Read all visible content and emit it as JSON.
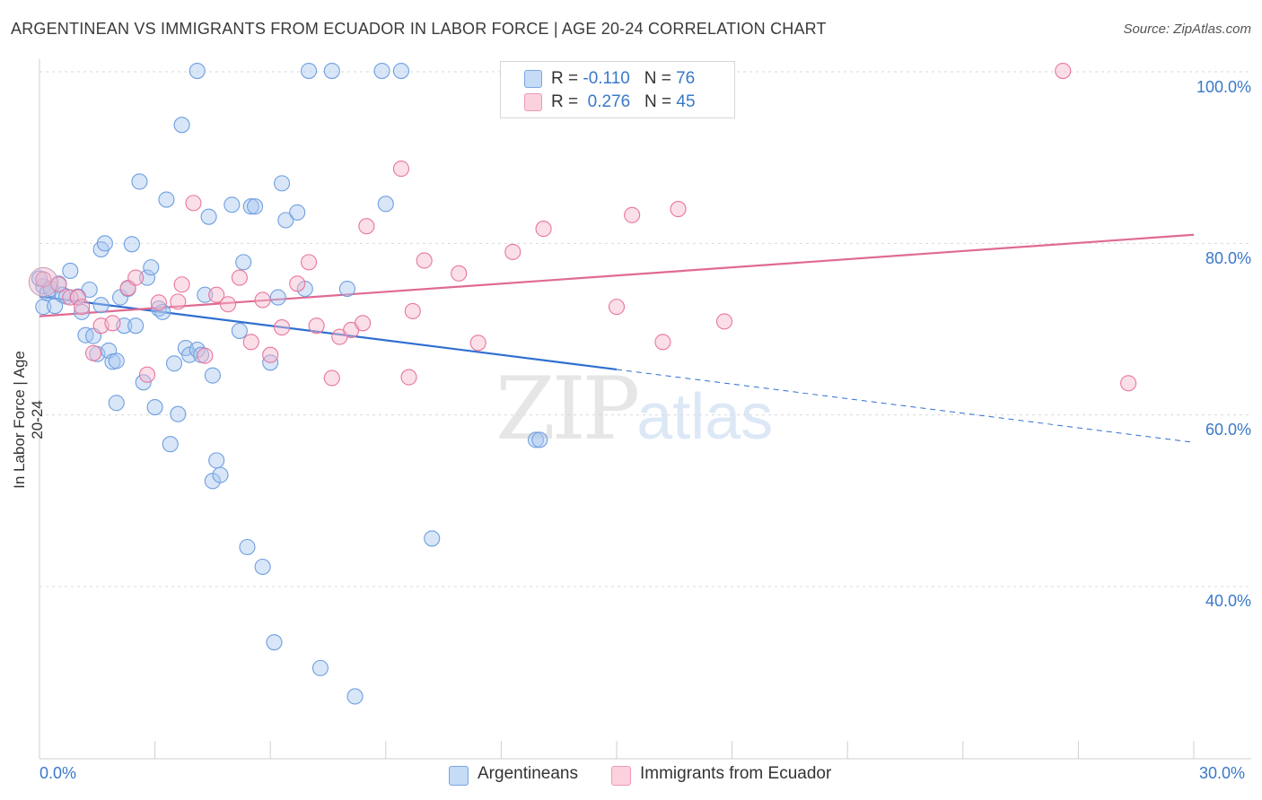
{
  "header": {
    "title": "ARGENTINEAN VS IMMIGRANTS FROM ECUADOR IN LABOR FORCE | AGE 20-24 CORRELATION CHART",
    "source": "Source: ZipAtlas.com"
  },
  "watermark": {
    "zip": "ZIP",
    "atlas": "atlas"
  },
  "legend_top": {
    "rows": [
      {
        "r_label": "R = ",
        "r_value": "-0.110",
        "n_label": "N = ",
        "n_value": "76",
        "color": "#a9c8f0"
      },
      {
        "r_label": "R = ",
        "r_value": "0.276",
        "n_label": "N = ",
        "n_value": "45",
        "color": "#f6b8cb"
      }
    ]
  },
  "legend_bottom": [
    {
      "label": "Argentineans",
      "color": "#a9c8f0"
    },
    {
      "label": "Immigrants from Ecuador",
      "color": "#f6b8cb"
    }
  ],
  "axis": {
    "ylabel": "In Labor Force | Age 20-24",
    "x_min_label": "0.0%",
    "x_max_label": "30.0%",
    "y_ticks": [
      "100.0%",
      "80.0%",
      "60.0%",
      "40.0%"
    ]
  },
  "chart_data": {
    "type": "scatter",
    "title": "ARGENTINEAN VS IMMIGRANTS FROM ECUADOR IN LABOR FORCE | AGE 20-24 CORRELATION CHART",
    "xlabel": "",
    "ylabel": "In Labor Force | Age 20-24",
    "xlim": [
      0,
      30
    ],
    "ylim": [
      20,
      102
    ],
    "y_ticks": [
      40,
      60,
      80,
      100
    ],
    "grid": true,
    "legend": "bottom",
    "series": [
      {
        "name": "Argentineans",
        "color": "#6f9fe0",
        "fill": "#a9c8f0",
        "R": -0.11,
        "N": 76,
        "trend": {
          "x0": 0,
          "y0": 73.8,
          "x1": 15,
          "y1": 65.3,
          "dashed_to_x": 30,
          "dashed_to_y": 56.8
        },
        "points": [
          [
            0.1,
            75.0
          ],
          [
            0.1,
            72.6
          ],
          [
            0.2,
            74.2
          ],
          [
            0.3,
            74.7
          ],
          [
            0.4,
            72.7
          ],
          [
            0.5,
            75.3
          ],
          [
            0.6,
            74.0
          ],
          [
            0.7,
            73.8
          ],
          [
            0.8,
            76.8
          ],
          [
            1.0,
            73.8
          ],
          [
            1.1,
            72.0
          ],
          [
            1.2,
            69.3
          ],
          [
            1.3,
            74.6
          ],
          [
            1.4,
            69.2
          ],
          [
            1.5,
            67.1
          ],
          [
            1.6,
            79.3
          ],
          [
            1.7,
            80.0
          ],
          [
            1.8,
            67.5
          ],
          [
            1.9,
            66.2
          ],
          [
            2.0,
            61.4
          ],
          [
            2.0,
            66.3
          ],
          [
            2.1,
            73.7
          ],
          [
            2.2,
            70.4
          ],
          [
            2.3,
            74.7
          ],
          [
            2.4,
            79.9
          ],
          [
            2.5,
            70.4
          ],
          [
            2.6,
            87.2
          ],
          [
            2.7,
            63.8
          ],
          [
            2.8,
            76.0
          ],
          [
            2.9,
            77.2
          ],
          [
            3.0,
            60.9
          ],
          [
            3.1,
            72.4
          ],
          [
            3.2,
            72.0
          ],
          [
            3.3,
            85.1
          ],
          [
            3.4,
            56.6
          ],
          [
            3.5,
            66.0
          ],
          [
            3.6,
            60.1
          ],
          [
            3.7,
            93.8
          ],
          [
            3.8,
            67.8
          ],
          [
            3.9,
            67.0
          ],
          [
            4.1,
            100.1
          ],
          [
            4.1,
            67.6
          ],
          [
            4.2,
            67.0
          ],
          [
            4.3,
            74.0
          ],
          [
            4.4,
            83.1
          ],
          [
            4.5,
            64.6
          ],
          [
            4.5,
            52.3
          ],
          [
            4.6,
            54.7
          ],
          [
            4.7,
            53.0
          ],
          [
            5.0,
            84.5
          ],
          [
            5.2,
            69.8
          ],
          [
            5.3,
            77.8
          ],
          [
            5.4,
            44.6
          ],
          [
            5.5,
            84.3
          ],
          [
            5.6,
            84.3
          ],
          [
            5.8,
            42.3
          ],
          [
            6.0,
            66.1
          ],
          [
            6.1,
            33.5
          ],
          [
            6.2,
            73.7
          ],
          [
            6.3,
            87.0
          ],
          [
            6.4,
            82.7
          ],
          [
            6.7,
            83.6
          ],
          [
            6.9,
            74.7
          ],
          [
            7.0,
            100.1
          ],
          [
            7.3,
            30.5
          ],
          [
            7.6,
            100.1
          ],
          [
            8.0,
            74.7
          ],
          [
            8.2,
            27.2
          ],
          [
            8.9,
            100.1
          ],
          [
            9.0,
            84.6
          ],
          [
            9.4,
            100.1
          ],
          [
            10.2,
            45.6
          ],
          [
            12.9,
            57.1
          ],
          [
            13.0,
            57.1
          ],
          [
            0.0,
            75.9
          ],
          [
            1.6,
            72.8
          ]
        ]
      },
      {
        "name": "Immigrants from Ecuador",
        "color": "#e8769d",
        "fill": "#f6b8cb",
        "R": 0.276,
        "N": 45,
        "trend": {
          "x0": 0,
          "y0": 71.5,
          "x1": 30,
          "y1": 81.0
        },
        "points": [
          [
            0.1,
            75.8
          ],
          [
            0.5,
            75.2
          ],
          [
            0.8,
            73.7
          ],
          [
            1.0,
            73.7
          ],
          [
            1.1,
            72.6
          ],
          [
            1.4,
            67.2
          ],
          [
            1.6,
            70.4
          ],
          [
            1.9,
            70.7
          ],
          [
            2.3,
            74.8
          ],
          [
            2.5,
            76.0
          ],
          [
            2.8,
            64.7
          ],
          [
            3.1,
            73.1
          ],
          [
            3.6,
            73.2
          ],
          [
            3.7,
            75.2
          ],
          [
            4.0,
            84.7
          ],
          [
            4.3,
            66.9
          ],
          [
            4.6,
            74.0
          ],
          [
            4.9,
            72.9
          ],
          [
            5.2,
            76.0
          ],
          [
            5.5,
            68.5
          ],
          [
            5.8,
            73.4
          ],
          [
            6.0,
            67.0
          ],
          [
            6.3,
            70.2
          ],
          [
            6.7,
            75.3
          ],
          [
            7.0,
            77.8
          ],
          [
            7.2,
            70.4
          ],
          [
            7.6,
            64.3
          ],
          [
            7.8,
            69.1
          ],
          [
            8.1,
            69.9
          ],
          [
            8.4,
            70.7
          ],
          [
            8.5,
            82.0
          ],
          [
            9.4,
            88.7
          ],
          [
            9.6,
            64.4
          ],
          [
            9.7,
            72.1
          ],
          [
            10.0,
            78.0
          ],
          [
            10.9,
            76.5
          ],
          [
            11.4,
            68.4
          ],
          [
            12.3,
            79.0
          ],
          [
            13.1,
            81.7
          ],
          [
            15.0,
            72.6
          ],
          [
            15.4,
            83.3
          ],
          [
            16.2,
            68.5
          ],
          [
            16.6,
            84.0
          ],
          [
            17.8,
            70.9
          ],
          [
            26.6,
            100.1
          ]
        ]
      }
    ],
    "extra_points": [
      [
        28.3,
        63.7
      ]
    ]
  }
}
